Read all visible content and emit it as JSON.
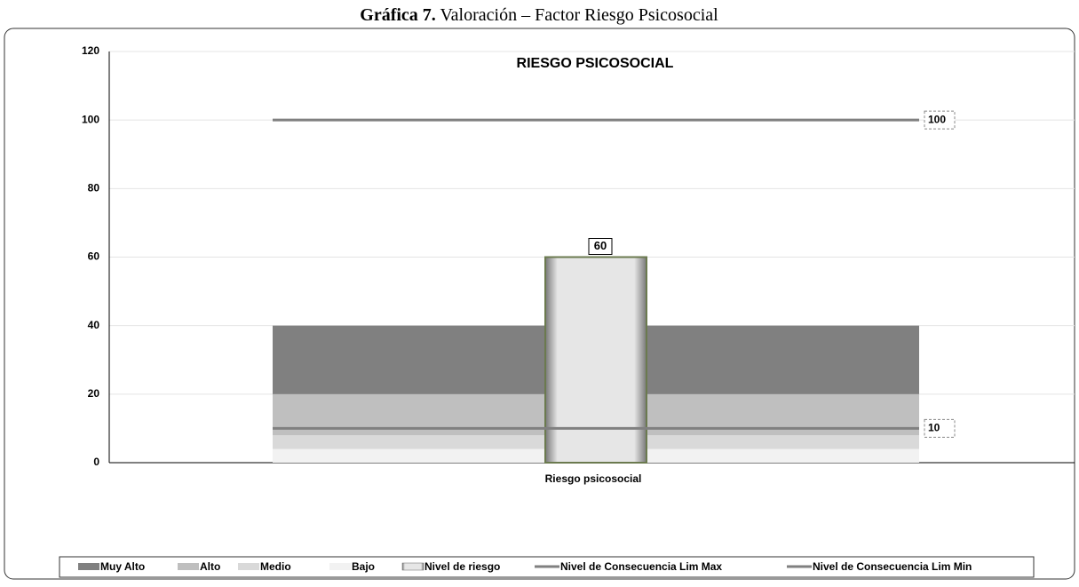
{
  "caption": {
    "label": "Gráfica 7.",
    "text": "Valoración – Factor Riesgo Psicosocial"
  },
  "chart_data": {
    "type": "bar",
    "title": "RIESGO PSICOSOCIAL",
    "categories": [
      "Riesgo psicosocial"
    ],
    "ylim": [
      0,
      120
    ],
    "yticks": [
      0,
      20,
      40,
      60,
      80,
      100,
      120
    ],
    "grid": true,
    "legend": "bottom",
    "series": [
      {
        "name": "Muy Alto",
        "type": "stacked",
        "color": "#808080",
        "values": [
          20
        ]
      },
      {
        "name": "Alto",
        "type": "stacked",
        "color": "#bfbfbf",
        "values": [
          12
        ]
      },
      {
        "name": "Medio",
        "type": "stacked",
        "color": "#d9d9d9",
        "values": [
          4
        ]
      },
      {
        "name": "Bajo",
        "type": "stacked",
        "color": "#f2f2f2",
        "values": [
          4
        ]
      },
      {
        "name": "Nivel de riesgo",
        "type": "bar",
        "color": "#e6e6e6",
        "values": [
          60
        ]
      },
      {
        "name": "Nivel de Consecuencia  Lim Max",
        "type": "line",
        "color": "#808080",
        "values": [
          100
        ]
      },
      {
        "name": "Nivel de Consecuencia  Lim Min",
        "type": "line",
        "color": "#808080",
        "values": [
          10
        ]
      }
    ]
  }
}
